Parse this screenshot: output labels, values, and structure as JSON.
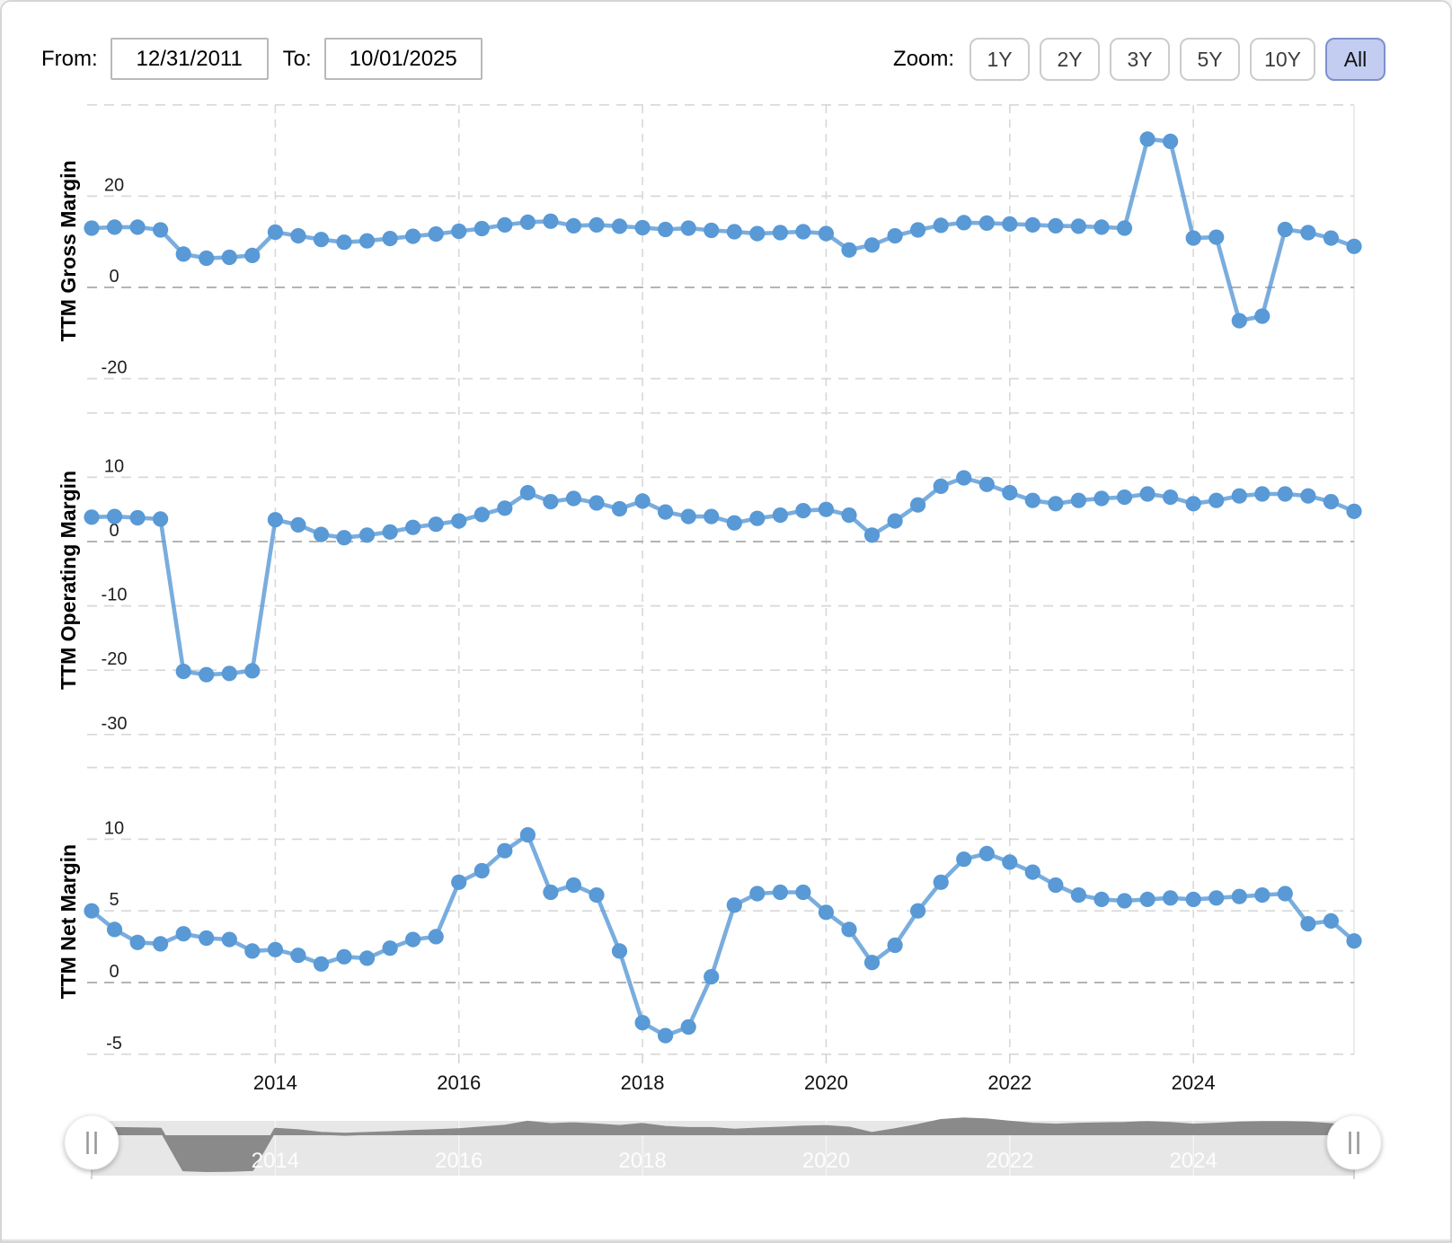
{
  "controls": {
    "from_label": "From:",
    "from_value": "12/31/2011",
    "to_label": "To:",
    "to_value": "10/01/2025",
    "zoom_label": "Zoom:",
    "zoom_buttons": [
      {
        "label": "1Y",
        "active": false
      },
      {
        "label": "2Y",
        "active": false
      },
      {
        "label": "3Y",
        "active": false
      },
      {
        "label": "5Y",
        "active": false
      },
      {
        "label": "10Y",
        "active": false
      },
      {
        "label": "All",
        "active": true
      }
    ]
  },
  "accent_colors": {
    "series_blue": "#5899d6",
    "grid_light": "#d8d8d8",
    "grid_zero": "#a9a9a9",
    "navigator_bg": "#e7e7e7",
    "navigator_series": "#8a8a8a",
    "active_button_bg": "#c3cdf1"
  },
  "x_axis": {
    "start_date": "12/31/2011",
    "end_date": "10/01/2025",
    "interval": "quarterly",
    "points": 56,
    "year_labels": [
      {
        "label": "2014",
        "index": 8
      },
      {
        "label": "2016",
        "index": 16
      },
      {
        "label": "2018",
        "index": 24
      },
      {
        "label": "2020",
        "index": 32
      },
      {
        "label": "2022",
        "index": 40
      },
      {
        "label": "2024",
        "index": 48
      }
    ]
  },
  "chart_data": [
    {
      "type": "line",
      "title": "TTM Gross Margin",
      "ylabel": "TTM Gross Margin",
      "ylim": [
        -24,
        40
      ],
      "y_tick_labels": [
        20,
        0,
        -20
      ],
      "y_gridlines": [
        40,
        20,
        0,
        -20
      ],
      "values": [
        13.0,
        13.2,
        13.2,
        12.6,
        7.3,
        6.4,
        6.6,
        7.0,
        12.1,
        11.3,
        10.5,
        9.9,
        10.2,
        10.7,
        11.2,
        11.7,
        12.3,
        12.9,
        13.7,
        14.3,
        14.5,
        13.5,
        13.7,
        13.4,
        13.1,
        12.7,
        13.0,
        12.5,
        12.2,
        11.8,
        12.0,
        12.2,
        11.8,
        8.2,
        9.3,
        11.3,
        12.6,
        13.6,
        14.2,
        14.1,
        13.9,
        13.7,
        13.5,
        13.4,
        13.2,
        13.0,
        32.5,
        32.0,
        10.8,
        11.0,
        -7.3,
        -6.3,
        12.7,
        12.0,
        10.8,
        9.0
      ]
    },
    {
      "type": "line",
      "title": "TTM Operating Margin",
      "ylabel": "TTM Operating Margin",
      "ylim": [
        -32,
        20
      ],
      "y_tick_labels": [
        10,
        0,
        -10,
        -20,
        -30
      ],
      "y_gridlines": [
        20,
        10,
        0,
        -10,
        -20,
        -30
      ],
      "values": [
        3.8,
        3.9,
        3.7,
        3.5,
        -20.2,
        -20.7,
        -20.5,
        -20.1,
        3.4,
        2.6,
        1.1,
        0.6,
        1.0,
        1.5,
        2.2,
        2.7,
        3.2,
        4.2,
        5.2,
        7.6,
        6.2,
        6.7,
        6.0,
        5.1,
        6.3,
        4.6,
        3.9,
        3.9,
        2.9,
        3.6,
        4.1,
        4.8,
        5.0,
        4.1,
        1.0,
        3.2,
        5.7,
        8.6,
        9.9,
        8.9,
        7.6,
        6.4,
        5.9,
        6.4,
        6.7,
        6.9,
        7.4,
        6.9,
        5.9,
        6.4,
        7.1,
        7.4,
        7.4,
        7.1,
        6.2,
        4.7
      ]
    },
    {
      "type": "line",
      "title": "TTM Net Margin",
      "ylabel": "TTM Net Margin",
      "ylim": [
        -6.5,
        15
      ],
      "y_tick_labels": [
        10,
        5,
        0,
        -5
      ],
      "y_gridlines": [
        15,
        10,
        5,
        0,
        -5
      ],
      "values": [
        5.0,
        3.7,
        2.8,
        2.7,
        3.4,
        3.1,
        3.0,
        2.2,
        2.3,
        1.9,
        1.3,
        1.8,
        1.7,
        2.4,
        3.0,
        3.2,
        7.0,
        7.8,
        9.2,
        10.3,
        6.3,
        6.8,
        6.1,
        2.2,
        -2.8,
        -3.7,
        -3.1,
        0.4,
        5.4,
        6.2,
        6.3,
        6.3,
        4.9,
        3.7,
        1.4,
        2.6,
        5.0,
        7.0,
        8.6,
        9.0,
        8.4,
        7.7,
        6.8,
        6.1,
        5.8,
        5.7,
        5.8,
        5.9,
        5.8,
        5.9,
        6.0,
        6.1,
        6.2,
        4.1,
        4.3,
        2.9
      ]
    }
  ],
  "navigator": {
    "series": "TTM Operating Margin",
    "handle_glyph": "||",
    "year_labels": [
      "2014",
      "2016",
      "2018",
      "2020",
      "2022",
      "2024"
    ]
  }
}
